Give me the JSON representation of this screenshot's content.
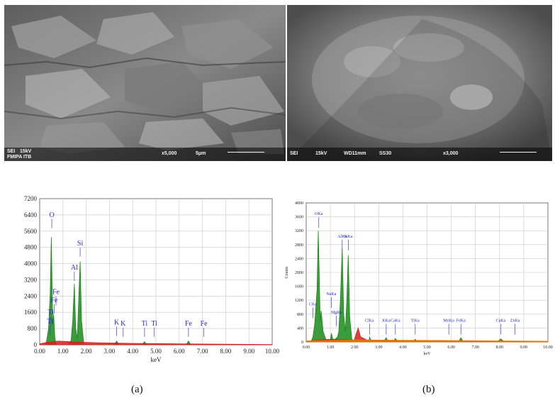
{
  "figure": {
    "panel_a": {
      "caption": "(a)",
      "sem_info": [
        "SEI",
        "15kV",
        "x5,000",
        "5μm",
        "FMIPA ITB"
      ],
      "spectrum_labels": [
        "O",
        "Si",
        "Al",
        "Fe",
        "Fe",
        "Ti",
        "Ti",
        "K",
        "K",
        "Ti",
        "Ti",
        "Fe",
        "Fe"
      ]
    },
    "panel_b": {
      "caption": "(b)",
      "sem_info": [
        "SEI",
        "15kV",
        "WD11mm",
        "SS30",
        "x3,000"
      ],
      "spectrum_labels": [
        "OKa",
        "SiKa",
        "AlKa",
        "CKa",
        "MgKa",
        "NaKa",
        "ClKa",
        "KKa",
        "CaKa",
        "TiKa",
        "MnKa",
        "FeKa",
        "CuKa",
        "ZnKa"
      ]
    }
  },
  "chart_data": [
    {
      "type": "line",
      "xlabel": "keV",
      "ylabel": "",
      "xlim": [
        0,
        10
      ],
      "ylim": [
        0,
        7200
      ],
      "xticks": [
        "0.00",
        "1.00",
        "2.00",
        "3.00",
        "4.00",
        "5.00",
        "6.00",
        "7.00",
        "8.00",
        "9.00",
        "10.00"
      ],
      "yticks": [
        "0",
        "800",
        "1600",
        "2400",
        "3200",
        "4000",
        "4800",
        "5600",
        "6400",
        "7200"
      ],
      "grid": true,
      "series": [
        {
          "color": "#1a8a1a",
          "x": [
            0.0,
            0.25,
            0.3,
            0.38,
            0.45,
            0.5,
            0.53,
            0.56,
            0.6,
            0.65,
            0.7,
            0.8,
            1.0,
            1.2,
            1.35,
            1.42,
            1.49,
            1.55,
            1.62,
            1.68,
            1.74,
            1.8,
            1.9,
            2.1,
            3.2,
            3.31,
            3.4,
            3.55,
            4.4,
            4.51,
            4.6,
            6.3,
            6.4,
            6.5,
            7.05,
            10.0
          ],
          "y": [
            0,
            0,
            200,
            800,
            2500,
            5300,
            3200,
            1000,
            1500,
            400,
            0,
            0,
            0,
            0,
            200,
            1200,
            3000,
            800,
            300,
            2300,
            4100,
            1200,
            0,
            0,
            0,
            180,
            0,
            0,
            0,
            150,
            0,
            0,
            180,
            0,
            0,
            0
          ]
        },
        {
          "color": "#d62020",
          "x": [
            0.0,
            0.3,
            0.8,
            1.2,
            2.0,
            2.5,
            3.0,
            4.0,
            5.0,
            6.0,
            7.0,
            8.0,
            9.0,
            10.0
          ],
          "y": [
            50,
            120,
            180,
            160,
            120,
            100,
            90,
            70,
            60,
            50,
            40,
            30,
            20,
            15
          ]
        }
      ],
      "annotations": [
        {
          "text": "O",
          "x": 0.52,
          "y": 6300
        },
        {
          "text": "Si",
          "x": 1.74,
          "y": 4900
        },
        {
          "text": "Al",
          "x": 1.49,
          "y": 3700
        },
        {
          "text": "Fe",
          "x": 0.7,
          "y": 2500
        },
        {
          "text": "Fe",
          "x": 0.62,
          "y": 2100
        },
        {
          "text": "Ti",
          "x": 0.48,
          "y": 1500
        },
        {
          "text": "Ti",
          "x": 0.45,
          "y": 1050
        },
        {
          "text": "K",
          "x": 3.31,
          "y": 1000
        },
        {
          "text": "K",
          "x": 3.59,
          "y": 950
        },
        {
          "text": "Ti",
          "x": 4.51,
          "y": 950
        },
        {
          "text": "Ti",
          "x": 4.93,
          "y": 950
        },
        {
          "text": "Fe",
          "x": 6.4,
          "y": 950
        },
        {
          "text": "Fe",
          "x": 7.06,
          "y": 950
        }
      ]
    },
    {
      "type": "line",
      "xlabel": "keV",
      "ylabel": "Counts",
      "xlim": [
        0,
        10
      ],
      "ylim": [
        0,
        4000
      ],
      "xticks": [
        "0.00",
        "1.00",
        "2.00",
        "3.00",
        "4.00",
        "5.00",
        "6.00",
        "7.00",
        "8.00",
        "9.00",
        "10.00"
      ],
      "yticks": [
        "0",
        "400",
        "800",
        "1200",
        "1600",
        "2000",
        "2400",
        "2800",
        "3200",
        "3600",
        "4000"
      ],
      "grid": true,
      "series": [
        {
          "color": "#1a8a1a",
          "x": [
            0.0,
            0.2,
            0.28,
            0.35,
            0.45,
            0.5,
            0.53,
            0.58,
            0.62,
            0.7,
            0.85,
            1.0,
            1.04,
            1.1,
            1.2,
            1.3,
            1.35,
            1.42,
            1.49,
            1.55,
            1.62,
            1.68,
            1.74,
            1.8,
            1.9,
            2.1,
            2.6,
            2.62,
            2.7,
            3.2,
            3.31,
            3.4,
            3.6,
            3.69,
            3.8,
            4.4,
            4.51,
            4.6,
            6.3,
            6.4,
            6.5,
            7.9,
            8.05,
            8.2,
            10.0
          ],
          "y": [
            0,
            0,
            150,
            500,
            1500,
            3200,
            2200,
            600,
            900,
            300,
            0,
            50,
            250,
            80,
            80,
            150,
            300,
            1300,
            2700,
            800,
            300,
            1200,
            2500,
            700,
            0,
            0,
            0,
            150,
            0,
            0,
            120,
            0,
            0,
            100,
            0,
            0,
            80,
            0,
            0,
            120,
            0,
            0,
            90,
            0,
            0
          ]
        },
        {
          "color": "#d62020",
          "x": [
            0.0,
            0.5,
            1.0,
            1.5,
            2.0,
            2.05,
            2.15,
            2.25,
            2.5,
            3.0,
            4.0,
            5.0,
            6.0,
            7.0,
            8.0,
            9.0,
            10.0
          ],
          "y": [
            20,
            60,
            80,
            70,
            60,
            200,
            400,
            150,
            60,
            50,
            40,
            35,
            30,
            25,
            20,
            15,
            10
          ]
        },
        {
          "color": "#e07a00",
          "x": [
            0.0,
            2.0,
            4.0,
            6.0,
            8.0,
            10.0
          ],
          "y": [
            30,
            60,
            50,
            40,
            30,
            20
          ]
        }
      ],
      "annotations": [
        {
          "text": "OKa",
          "x": 0.52,
          "y": 3650
        },
        {
          "text": "AlKa",
          "x": 1.49,
          "y": 3000
        },
        {
          "text": "SiKa",
          "x": 1.74,
          "y": 3000
        },
        {
          "text": "CKa",
          "x": 0.28,
          "y": 1050
        },
        {
          "text": "NaKa",
          "x": 1.04,
          "y": 1350
        },
        {
          "text": "MgKa",
          "x": 1.25,
          "y": 820
        },
        {
          "text": "ClKa",
          "x": 2.62,
          "y": 580
        },
        {
          "text": "KKa",
          "x": 3.31,
          "y": 580
        },
        {
          "text": "CaKa",
          "x": 3.69,
          "y": 580
        },
        {
          "text": "TiKa",
          "x": 4.51,
          "y": 580
        },
        {
          "text": "MnKa",
          "x": 5.9,
          "y": 580
        },
        {
          "text": "FeKa",
          "x": 6.4,
          "y": 580
        },
        {
          "text": "CuKa",
          "x": 8.05,
          "y": 580
        },
        {
          "text": "ZnKa",
          "x": 8.64,
          "y": 580
        }
      ]
    }
  ]
}
